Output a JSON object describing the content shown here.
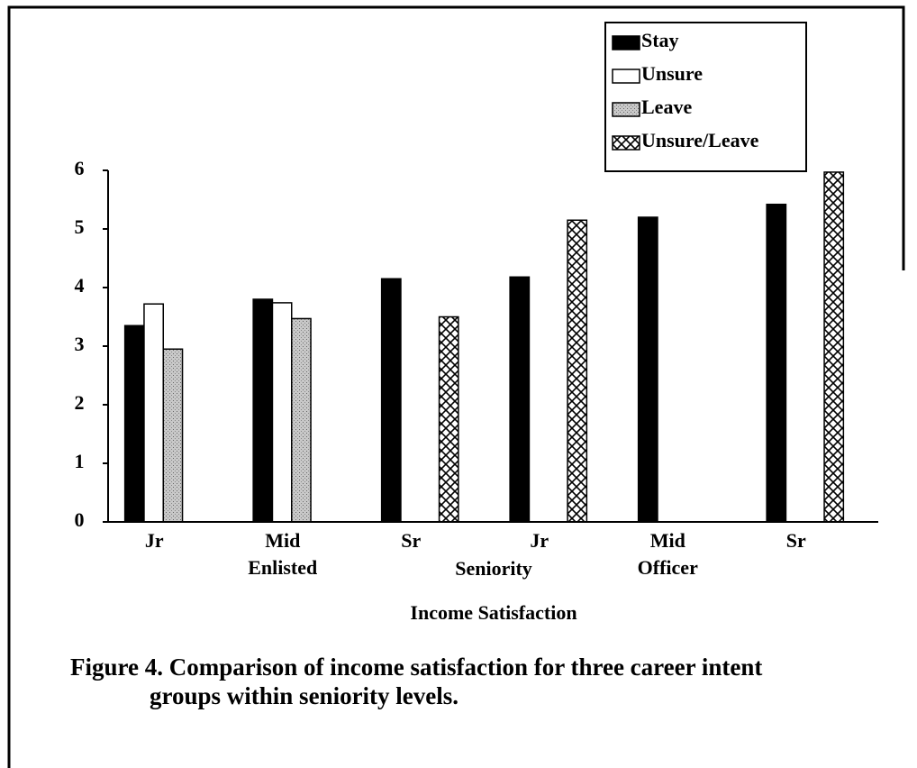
{
  "chart_data": {
    "type": "bar",
    "categories": [
      "Jr",
      "Mid",
      "Sr",
      "Jr",
      "Mid",
      "Sr"
    ],
    "groups": [
      "Enlisted",
      "Officer"
    ],
    "x_label": "Seniority",
    "subtitle": "Income Satisfaction",
    "caption": [
      "Figure 4.  Comparison of income satisfaction for three career intent",
      "groups within seniority levels."
    ],
    "series": [
      {
        "name": "Stay",
        "color": "#000000",
        "pattern": "solid",
        "values": [
          3.35,
          3.8,
          4.15,
          4.18,
          5.2,
          5.42
        ]
      },
      {
        "name": "Unsure",
        "color": "#ffffff",
        "pattern": "solid",
        "values": [
          3.72,
          3.74,
          null,
          null,
          null,
          null
        ]
      },
      {
        "name": "Leave",
        "color": "#bbbbbb",
        "pattern": "stipple",
        "values": [
          2.95,
          3.47,
          null,
          null,
          null,
          null
        ]
      },
      {
        "name": "Unsure/Leave",
        "color": "#ffffff",
        "pattern": "crosshatch",
        "values": [
          null,
          null,
          3.5,
          5.15,
          null,
          5.97
        ]
      }
    ],
    "ylim": [
      0,
      6
    ],
    "yticks": [
      0,
      1,
      2,
      3,
      4,
      5,
      6
    ],
    "grid": false,
    "legend": "top-right"
  }
}
